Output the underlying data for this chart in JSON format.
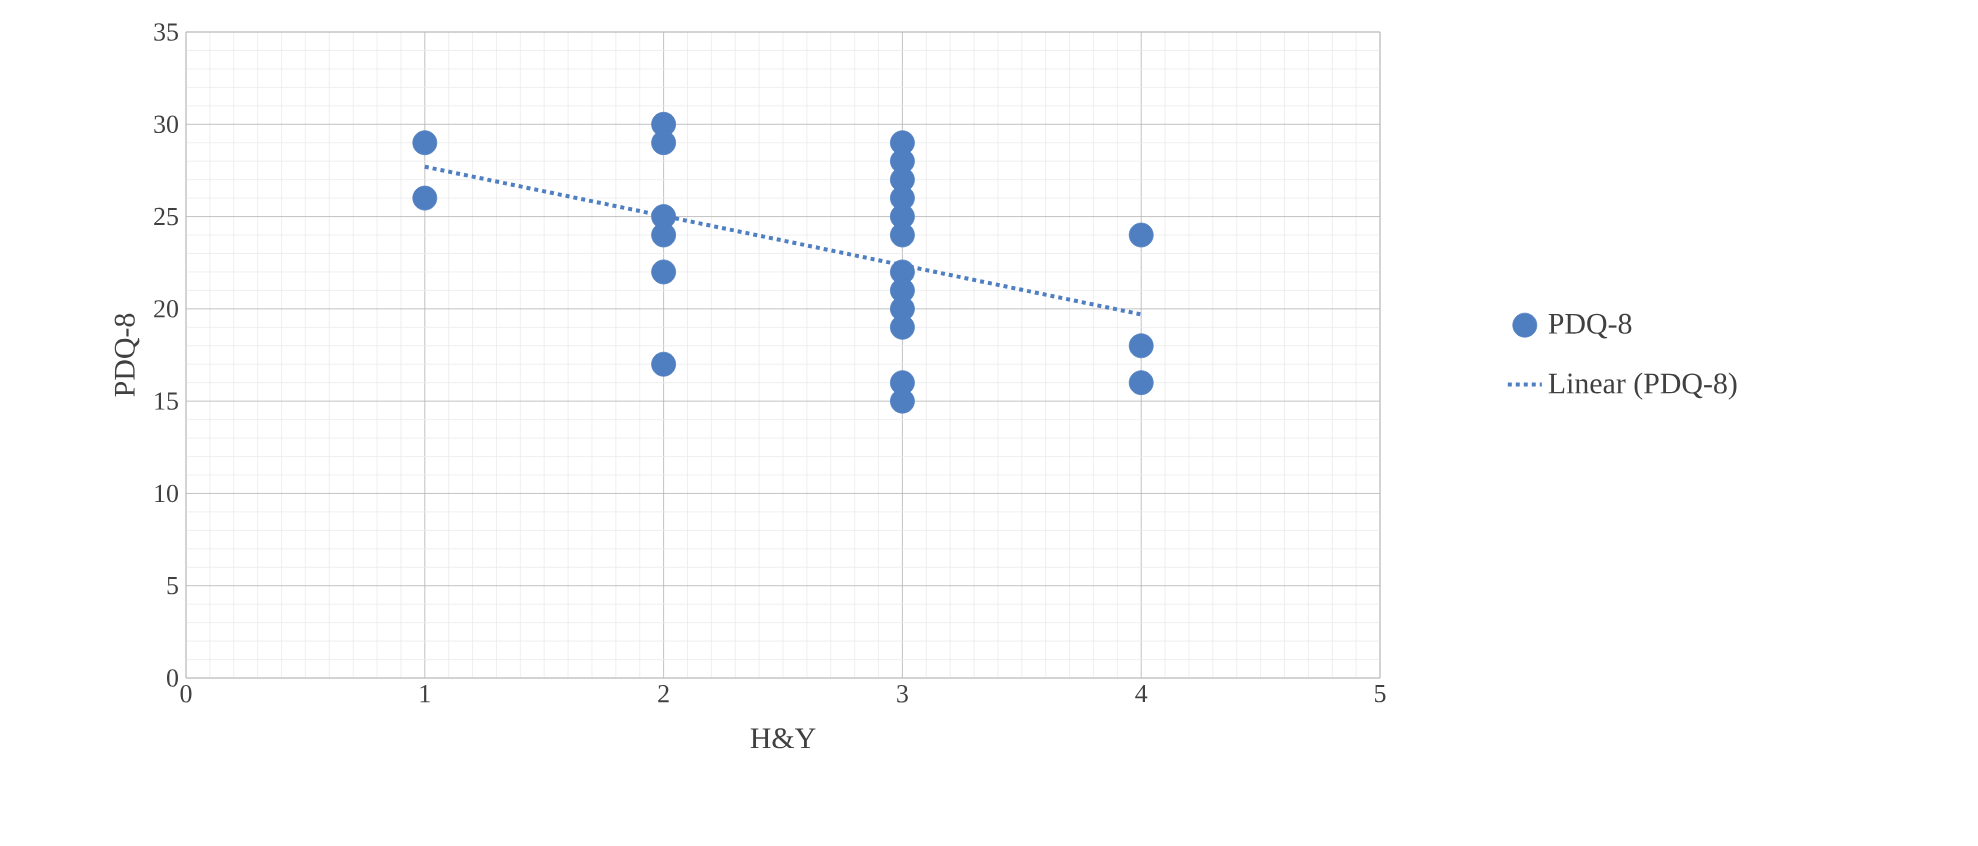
{
  "chart_data": {
    "type": "scatter",
    "xlabel": "H&Y",
    "ylabel": "PDQ-8",
    "xlim": [
      0,
      5
    ],
    "xticks": [
      0,
      1,
      2,
      3,
      4,
      5
    ],
    "ylim": [
      0,
      35
    ],
    "yticks": [
      0,
      5,
      10,
      15,
      20,
      25,
      30,
      35
    ],
    "grid": true,
    "legend": "right",
    "series": [
      {
        "name": "PDQ-8",
        "color": "#4f7fc0",
        "x": [
          1,
          1,
          2,
          2,
          2,
          2,
          2,
          2,
          3,
          3,
          3,
          3,
          3,
          3,
          3,
          3,
          3,
          3,
          3,
          3,
          4,
          4,
          4
        ],
        "values": [
          29,
          26,
          30,
          29,
          25,
          24,
          22,
          17,
          29,
          28,
          27,
          26,
          25,
          24,
          22,
          21,
          20,
          19,
          16,
          15,
          24,
          18,
          16
        ]
      },
      {
        "name": "Linear (PDQ-8)",
        "type": "line",
        "line_style": "dotted",
        "color": "#4f7fc0",
        "x": [
          1,
          4
        ],
        "values": [
          27.7,
          19.7
        ]
      }
    ]
  }
}
